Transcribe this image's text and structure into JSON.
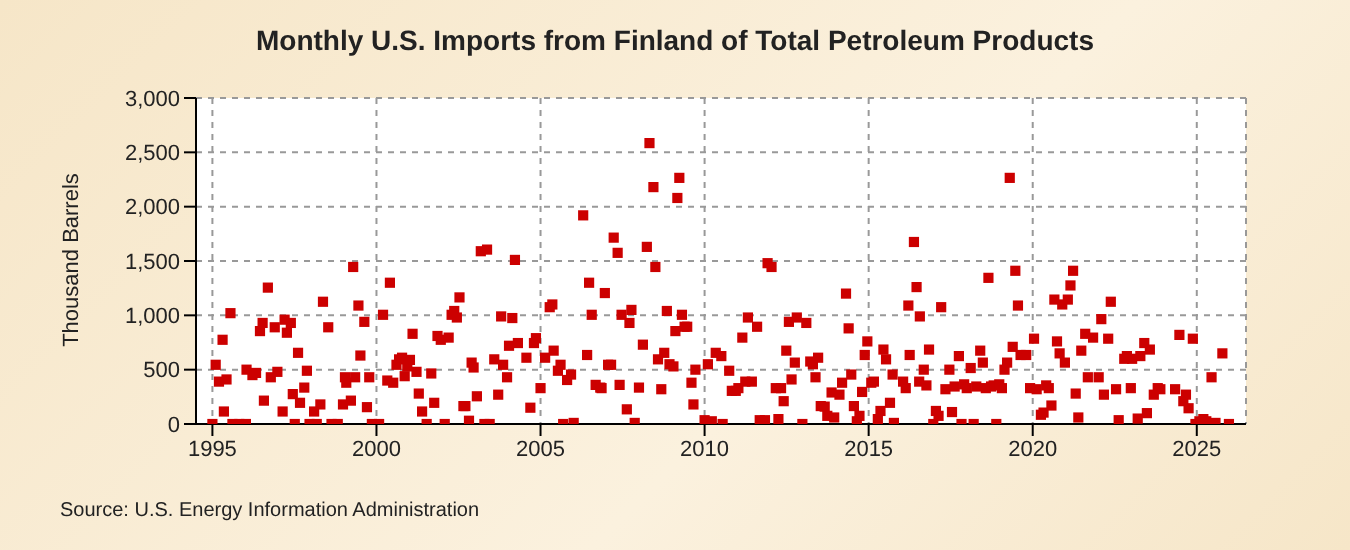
{
  "chart_data": {
    "type": "scatter",
    "title": "Monthly U.S. Imports from Finland of Total Petroleum Products",
    "ylabel": "Thousand Barrels",
    "annotations": [
      "Source: U.S. Energy Information Administration"
    ],
    "xlim": [
      1994.5,
      2026.5
    ],
    "xticks": [
      1995,
      2000,
      2005,
      2010,
      2015,
      2020,
      2025
    ],
    "ylim": [
      0,
      3000
    ],
    "yticks": [
      0,
      500,
      {
        "value": 1000,
        "label": "1,000"
      },
      {
        "value": 1500,
        "label": "1,500"
      },
      {
        "value": 2000,
        "label": "2,000"
      },
      {
        "value": 2500,
        "label": "2,500"
      },
      {
        "value": 3000,
        "label": "3,000"
      }
    ],
    "grid": true,
    "marker": "square",
    "color": "#cc0000",
    "x": [
      1995.0,
      1995.1,
      1995.2,
      1995.31,
      1995.35,
      1995.43,
      1995.55,
      1995.61,
      1995.82,
      1996.02,
      1996.04,
      1996.22,
      1996.33,
      1996.45,
      1996.53,
      1996.57,
      1996.69,
      1996.78,
      1996.9,
      1996.98,
      1997.14,
      1997.2,
      1997.27,
      1997.39,
      1997.45,
      1997.51,
      1997.61,
      1997.67,
      1997.8,
      1997.88,
      1997.96,
      1998.1,
      1998.18,
      1998.29,
      1998.37,
      1998.53,
      1998.63,
      1998.82,
      1998.98,
      1999.04,
      1999.08,
      1999.22,
      1999.29,
      1999.35,
      1999.45,
      1999.51,
      1999.63,
      1999.71,
      1999.78,
      1999.86,
      2000.08,
      2000.2,
      2000.33,
      2000.41,
      2000.51,
      2000.61,
      2000.69,
      2000.78,
      2000.86,
      2000.94,
      2001.02,
      2001.1,
      2001.22,
      2001.29,
      2001.39,
      2001.53,
      2001.67,
      2001.76,
      2001.86,
      2001.96,
      2002.08,
      2002.2,
      2002.29,
      2002.37,
      2002.45,
      2002.53,
      2002.65,
      2002.71,
      2002.82,
      2002.9,
      2002.96,
      2003.06,
      2003.18,
      2003.29,
      2003.37,
      2003.45,
      2003.59,
      2003.71,
      2003.8,
      2003.86,
      2003.98,
      2004.04,
      2004.14,
      2004.22,
      2004.31,
      2004.57,
      2004.69,
      2004.8,
      2004.86,
      2005.0,
      2005.14,
      2005.28,
      2005.36,
      2005.4,
      2005.53,
      2005.61,
      2005.69,
      2005.81,
      2005.93,
      2006.01,
      2006.3,
      2006.42,
      2006.48,
      2006.56,
      2006.68,
      2006.82,
      2006.86,
      2006.96,
      2007.06,
      2007.15,
      2007.23,
      2007.35,
      2007.41,
      2007.47,
      2007.63,
      2007.71,
      2007.77,
      2007.87,
      2008.0,
      2008.12,
      2008.24,
      2008.32,
      2008.44,
      2008.5,
      2008.58,
      2008.68,
      2008.77,
      2008.85,
      2008.93,
      2009.05,
      2009.11,
      2009.17,
      2009.23,
      2009.31,
      2009.39,
      2009.47,
      2009.6,
      2009.66,
      2009.72,
      2010.0,
      2010.1,
      2010.22,
      2010.34,
      2010.51,
      2010.55,
      2010.75,
      2010.83,
      2010.95,
      2011.03,
      2011.15,
      2011.24,
      2011.32,
      2011.44,
      2011.6,
      2011.68,
      2011.84,
      2011.92,
      2012.04,
      2012.17,
      2012.25,
      2012.33,
      2012.41,
      2012.49,
      2012.57,
      2012.65,
      2012.75,
      2012.81,
      2012.98,
      2013.1,
      2013.22,
      2013.3,
      2013.38,
      2013.46,
      2013.54,
      2013.66,
      2013.74,
      2013.87,
      2013.95,
      2014.11,
      2014.19,
      2014.31,
      2014.39,
      2014.47,
      2014.55,
      2014.64,
      2014.72,
      2014.8,
      2014.88,
      2014.96,
      2015.08,
      2015.16,
      2015.28,
      2015.36,
      2015.45,
      2015.53,
      2015.65,
      2015.73,
      2015.77,
      2016.05,
      2016.13,
      2016.21,
      2016.25,
      2016.38,
      2016.46,
      2016.54,
      2016.56,
      2016.68,
      2016.76,
      2016.84,
      2016.97,
      2017.05,
      2017.13,
      2017.21,
      2017.34,
      2017.46,
      2017.54,
      2017.62,
      2017.75,
      2017.83,
      2017.91,
      2017.99,
      2018.11,
      2018.2,
      2018.28,
      2018.4,
      2018.48,
      2018.57,
      2018.65,
      2018.73,
      2018.81,
      2018.89,
      2018.98,
      2019.06,
      2019.14,
      2019.22,
      2019.3,
      2019.39,
      2019.47,
      2019.55,
      2019.63,
      2019.8,
      2019.92,
      2020.04,
      2020.12,
      2020.25,
      2020.33,
      2020.41,
      2020.49,
      2020.57,
      2020.66,
      2020.74,
      2020.82,
      2020.9,
      2020.98,
      2021.07,
      2021.15,
      2021.23,
      2021.31,
      2021.39,
      2021.48,
      2021.6,
      2021.68,
      2021.84,
      2022.01,
      2022.09,
      2022.17,
      2022.3,
      2022.38,
      2022.54,
      2022.62,
      2022.79,
      2022.87,
      2022.99,
      2023.03,
      2023.2,
      2023.28,
      2023.4,
      2023.48,
      2023.57,
      2023.69,
      2023.81,
      2023.89,
      2024.34,
      2024.47,
      2024.59,
      2024.67,
      2024.75,
      2024.88,
      2024.96,
      2025.08,
      2025.2,
      2025.29,
      2025.45,
      2025.57,
      2025.78,
      2025.98
    ],
    "values": [
      0,
      545,
      390,
      775,
      115,
      410,
      1020,
      0,
      0,
      0,
      500,
      450,
      470,
      855,
      930,
      215,
      1255,
      430,
      890,
      480,
      115,
      960,
      840,
      930,
      275,
      0,
      655,
      195,
      335,
      490,
      0,
      115,
      0,
      180,
      1125,
      890,
      0,
      0,
      180,
      430,
      380,
      215,
      1445,
      430,
      1090,
      630,
      940,
      155,
      430,
      0,
      0,
      1005,
      400,
      1300,
      380,
      545,
      595,
      610,
      440,
      530,
      590,
      830,
      480,
      280,
      115,
      0,
      465,
      195,
      810,
      775,
      0,
      795,
      1005,
      1040,
      980,
      1165,
      165,
      165,
      30,
      565,
      520,
      255,
      1590,
      0,
      1605,
      0,
      595,
      270,
      990,
      545,
      430,
      720,
      975,
      1510,
      745,
      610,
      150,
      745,
      790,
      330,
      610,
      1075,
      1100,
      675,
      490,
      545,
      0,
      405,
      455,
      10,
      1920,
      635,
      1300,
      1005,
      360,
      335,
      330,
      1205,
      545,
      545,
      1715,
      1575,
      360,
      1005,
      135,
      930,
      1050,
      10,
      335,
      730,
      1630,
      2585,
      2180,
      1445,
      595,
      320,
      655,
      1040,
      550,
      530,
      855,
      2080,
      2265,
      1005,
      895,
      895,
      380,
      180,
      500,
      35,
      550,
      25,
      655,
      625,
      0,
      490,
      305,
      305,
      330,
      795,
      390,
      980,
      390,
      895,
      35,
      35,
      1480,
      1445,
      330,
      45,
      330,
      210,
      675,
      940,
      410,
      565,
      980,
      0,
      930,
      575,
      550,
      430,
      610,
      165,
      160,
      75,
      290,
      60,
      270,
      380,
      1200,
      880,
      455,
      165,
      25,
      75,
      295,
      635,
      760,
      380,
      390,
      45,
      120,
      685,
      595,
      195,
      455,
      10,
      390,
      330,
      1090,
      635,
      1675,
      1260,
      390,
      990,
      500,
      355,
      685,
      0,
      120,
      75,
      1075,
      320,
      500,
      110,
      345,
      625,
      0,
      365,
      330,
      515,
      0,
      345,
      675,
      565,
      330,
      1345,
      345,
      355,
      0,
      365,
      330,
      500,
      565,
      2265,
      710,
      1410,
      1090,
      635,
      635,
      330,
      785,
      320,
      85,
      105,
      355,
      330,
      170,
      1145,
      760,
      650,
      1100,
      565,
      1145,
      1275,
      1410,
      280,
      60,
      675,
      830,
      430,
      795,
      430,
      965,
      270,
      785,
      1125,
      320,
      35,
      600,
      625,
      330,
      600,
      50,
      625,
      745,
      100,
      685,
      270,
      330,
      320,
      320,
      820,
      210,
      270,
      145,
      785,
      0,
      25,
      45,
      25,
      430,
      10,
      650,
      0
    ]
  }
}
